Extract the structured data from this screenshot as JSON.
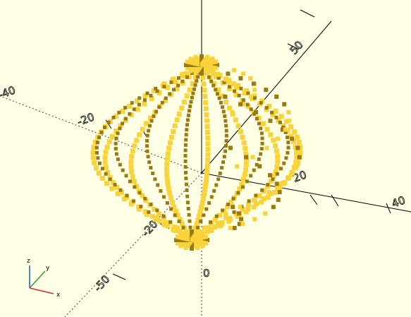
{
  "viewport": {
    "background": "#ffffe5",
    "model_color": "#f8d33a",
    "model_shadow": "#9a7a10",
    "model": "wire-lattice-sphere"
  },
  "axis_labels": {
    "top_y": "50",
    "left_x": "-40",
    "mid_x": "-20",
    "center": "0",
    "right_x": "20",
    "far_right_x": "40",
    "bottom_y": "-50",
    "mid_z": "-20"
  },
  "gizmo": {
    "x": "x",
    "y": "y",
    "z": "z",
    "x_color": "#d92e2e",
    "y_color": "#2ea82e",
    "z_color": "#2e5ed9"
  }
}
